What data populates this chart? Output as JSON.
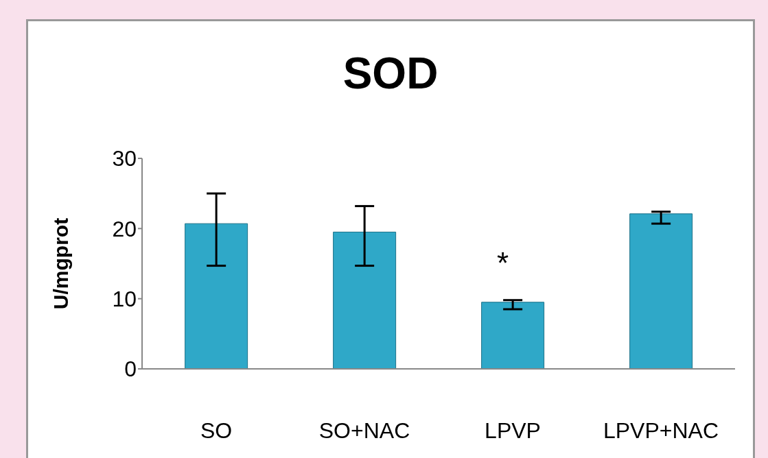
{
  "chart_data": {
    "type": "bar",
    "title": "SOD",
    "ylabel": "U/mgprot",
    "categories": [
      "SO",
      "SO+NAC",
      "LPVP",
      "LPVP+NAC"
    ],
    "values": [
      20.7,
      19.5,
      9.5,
      22.1
    ],
    "errors": [
      [
        14.7,
        25.0
      ],
      [
        14.7,
        23.2
      ],
      [
        8.5,
        9.8
      ],
      [
        20.7,
        22.4
      ]
    ],
    "color": "#2fa8c8",
    "ylim": [
      0,
      30
    ],
    "yticks": [
      0,
      10,
      20,
      30
    ],
    "grid": false,
    "legend": false,
    "annotations": [
      "*"
    ]
  }
}
